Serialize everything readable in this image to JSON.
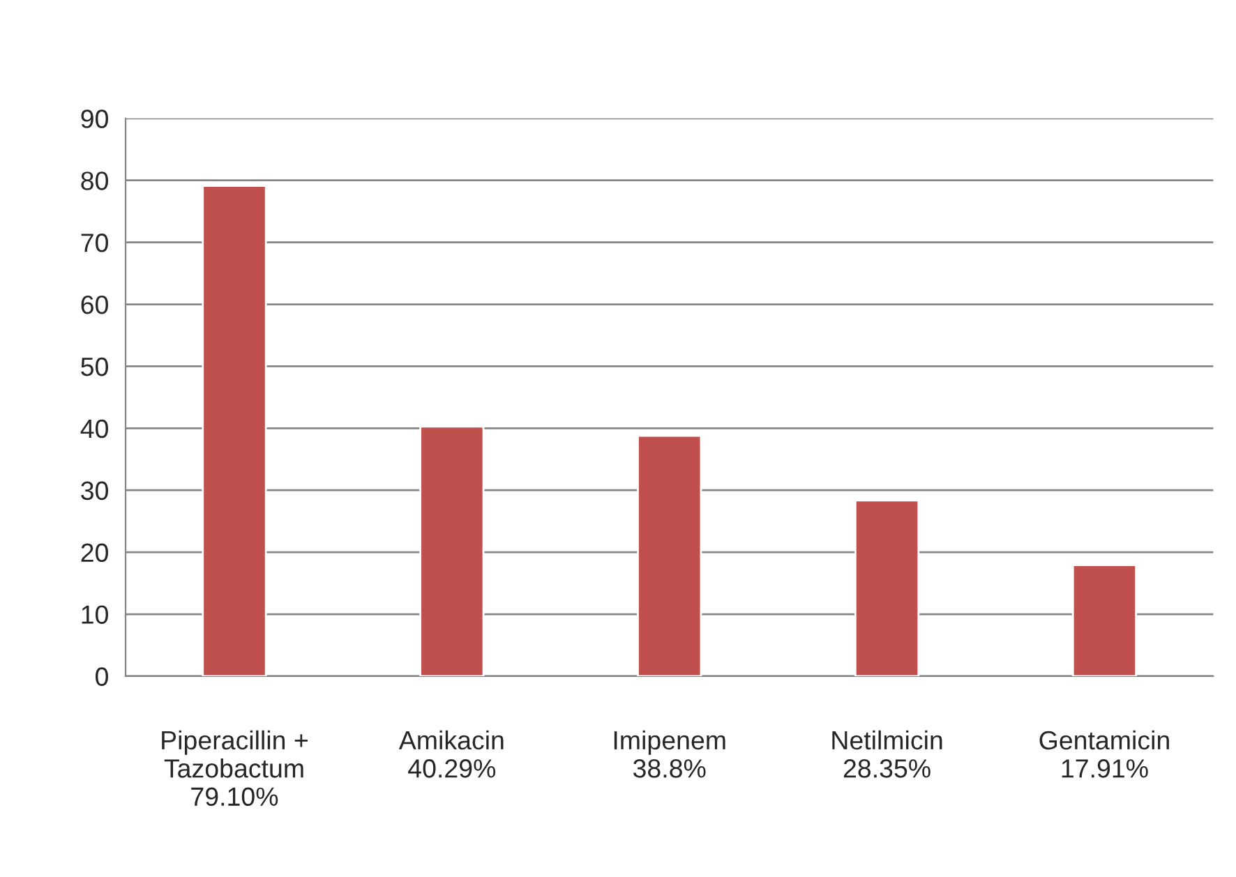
{
  "chart_data": {
    "type": "bar",
    "categories": [
      "Piperacillin +\nTazobactum\n79.10%",
      "Amikacin\n40.29%",
      "Imipenem\n38.8%",
      "Netilmicin\n28.35%",
      "Gentamicin\n17.91%"
    ],
    "values": [
      79.1,
      40.29,
      38.8,
      28.35,
      17.91
    ],
    "color": "#c0504d",
    "ylim": [
      0,
      90
    ],
    "yticks": [
      0,
      10,
      20,
      30,
      40,
      50,
      60,
      70,
      80,
      90
    ],
    "grid": "y",
    "legend": false
  }
}
